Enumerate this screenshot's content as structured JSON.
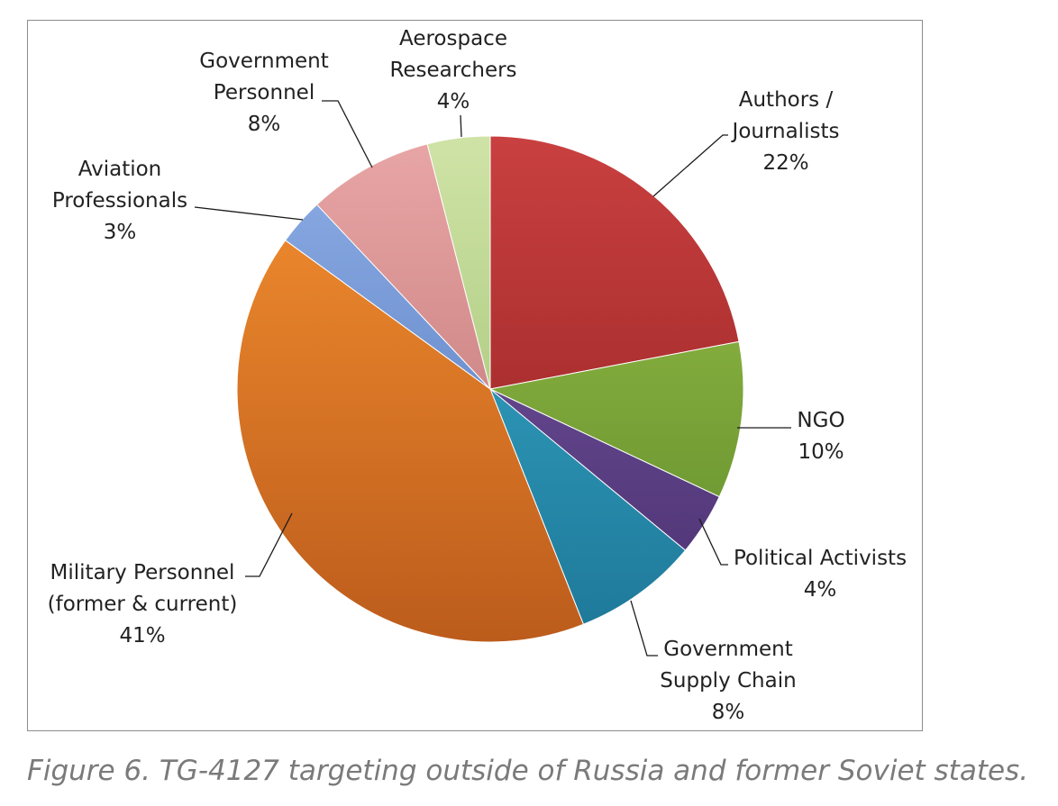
{
  "chart_data": {
    "type": "pie",
    "title": "",
    "start_angle_deg": 0,
    "direction": "clockwise",
    "slices": [
      {
        "label_lines": [
          "Authors /",
          "Journalists"
        ],
        "pct_label": "22%",
        "value": 22,
        "color_light": "#c94040",
        "color_dark": "#8f1f1f"
      },
      {
        "label_lines": [
          "NGO"
        ],
        "pct_label": "10%",
        "value": 10,
        "color_light": "#9cc24a",
        "color_dark": "#5e8a2a"
      },
      {
        "label_lines": [
          "Political Activists"
        ],
        "pct_label": "4%",
        "value": 4,
        "color_light": "#7a5aa6",
        "color_dark": "#4a3070"
      },
      {
        "label_lines": [
          "Government",
          "Supply Chain"
        ],
        "pct_label": "8%",
        "value": 8,
        "color_light": "#3aaed0",
        "color_dark": "#1e7898"
      },
      {
        "label_lines": [
          "Military Personnel",
          "(former & current)"
        ],
        "pct_label": "41%",
        "value": 41,
        "color_light": "#f59030",
        "color_dark": "#bc5c1c"
      },
      {
        "label_lines": [
          "Aviation",
          "Professionals"
        ],
        "pct_label": "3%",
        "value": 3,
        "color_light": "#8eaee6",
        "color_dark": "#4f74b8"
      },
      {
        "label_lines": [
          "Government",
          "Personnel"
        ],
        "pct_label": "8%",
        "value": 8,
        "color_light": "#e9a6a6",
        "color_dark": "#b86c6c"
      },
      {
        "label_lines": [
          "Aerospace",
          "Researchers"
        ],
        "pct_label": "4%",
        "value": 4,
        "color_light": "#cfe3a6",
        "color_dark": "#98bc6a"
      }
    ]
  },
  "caption": "Figure 6. TG-4127 targeting outside of Russia and former Soviet states."
}
